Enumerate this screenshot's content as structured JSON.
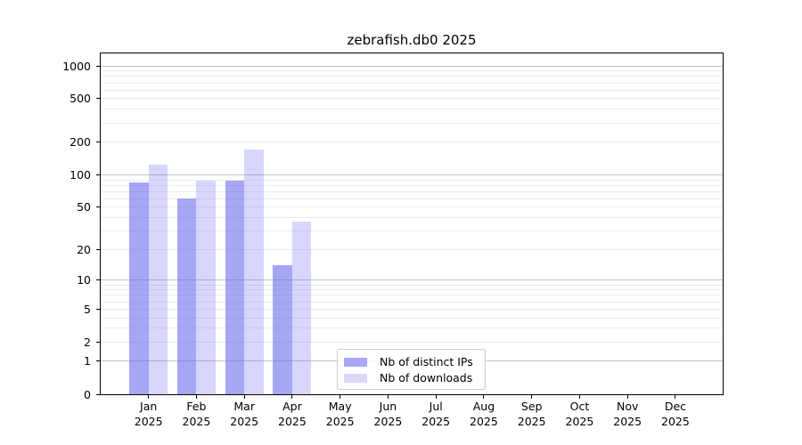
{
  "title": "zebrafish.db0 2025",
  "chart_data": {
    "type": "bar",
    "title": "zebrafish.db0 2025",
    "x_categories": [
      "Jan",
      "Feb",
      "Mar",
      "Apr",
      "May",
      "Jun",
      "Jul",
      "Aug",
      "Sep",
      "Oct",
      "Nov",
      "Dec"
    ],
    "x_year": "2025",
    "xlabel": "",
    "ylabel": "",
    "y_scale": "log10(value+1)",
    "y_ticks": [
      0,
      1,
      2,
      5,
      10,
      20,
      50,
      100,
      200,
      500,
      1000
    ],
    "ylim": [
      0,
      1100
    ],
    "grid": true,
    "legend_position": "lower-center-left",
    "series": [
      {
        "name": "Nb of distinct IPs",
        "color": "#a7a7f6",
        "fill": "rgba(102,102,238,0.58)",
        "values": [
          85,
          60,
          89,
          14,
          null,
          null,
          null,
          null,
          null,
          null,
          null,
          null
        ]
      },
      {
        "name": "Nb of downloads",
        "color": "#d8d8f7",
        "fill": "rgba(102,102,238,0.26)",
        "values": [
          124,
          89,
          170,
          37,
          null,
          null,
          null,
          null,
          null,
          null,
          null,
          null
        ]
      }
    ]
  }
}
